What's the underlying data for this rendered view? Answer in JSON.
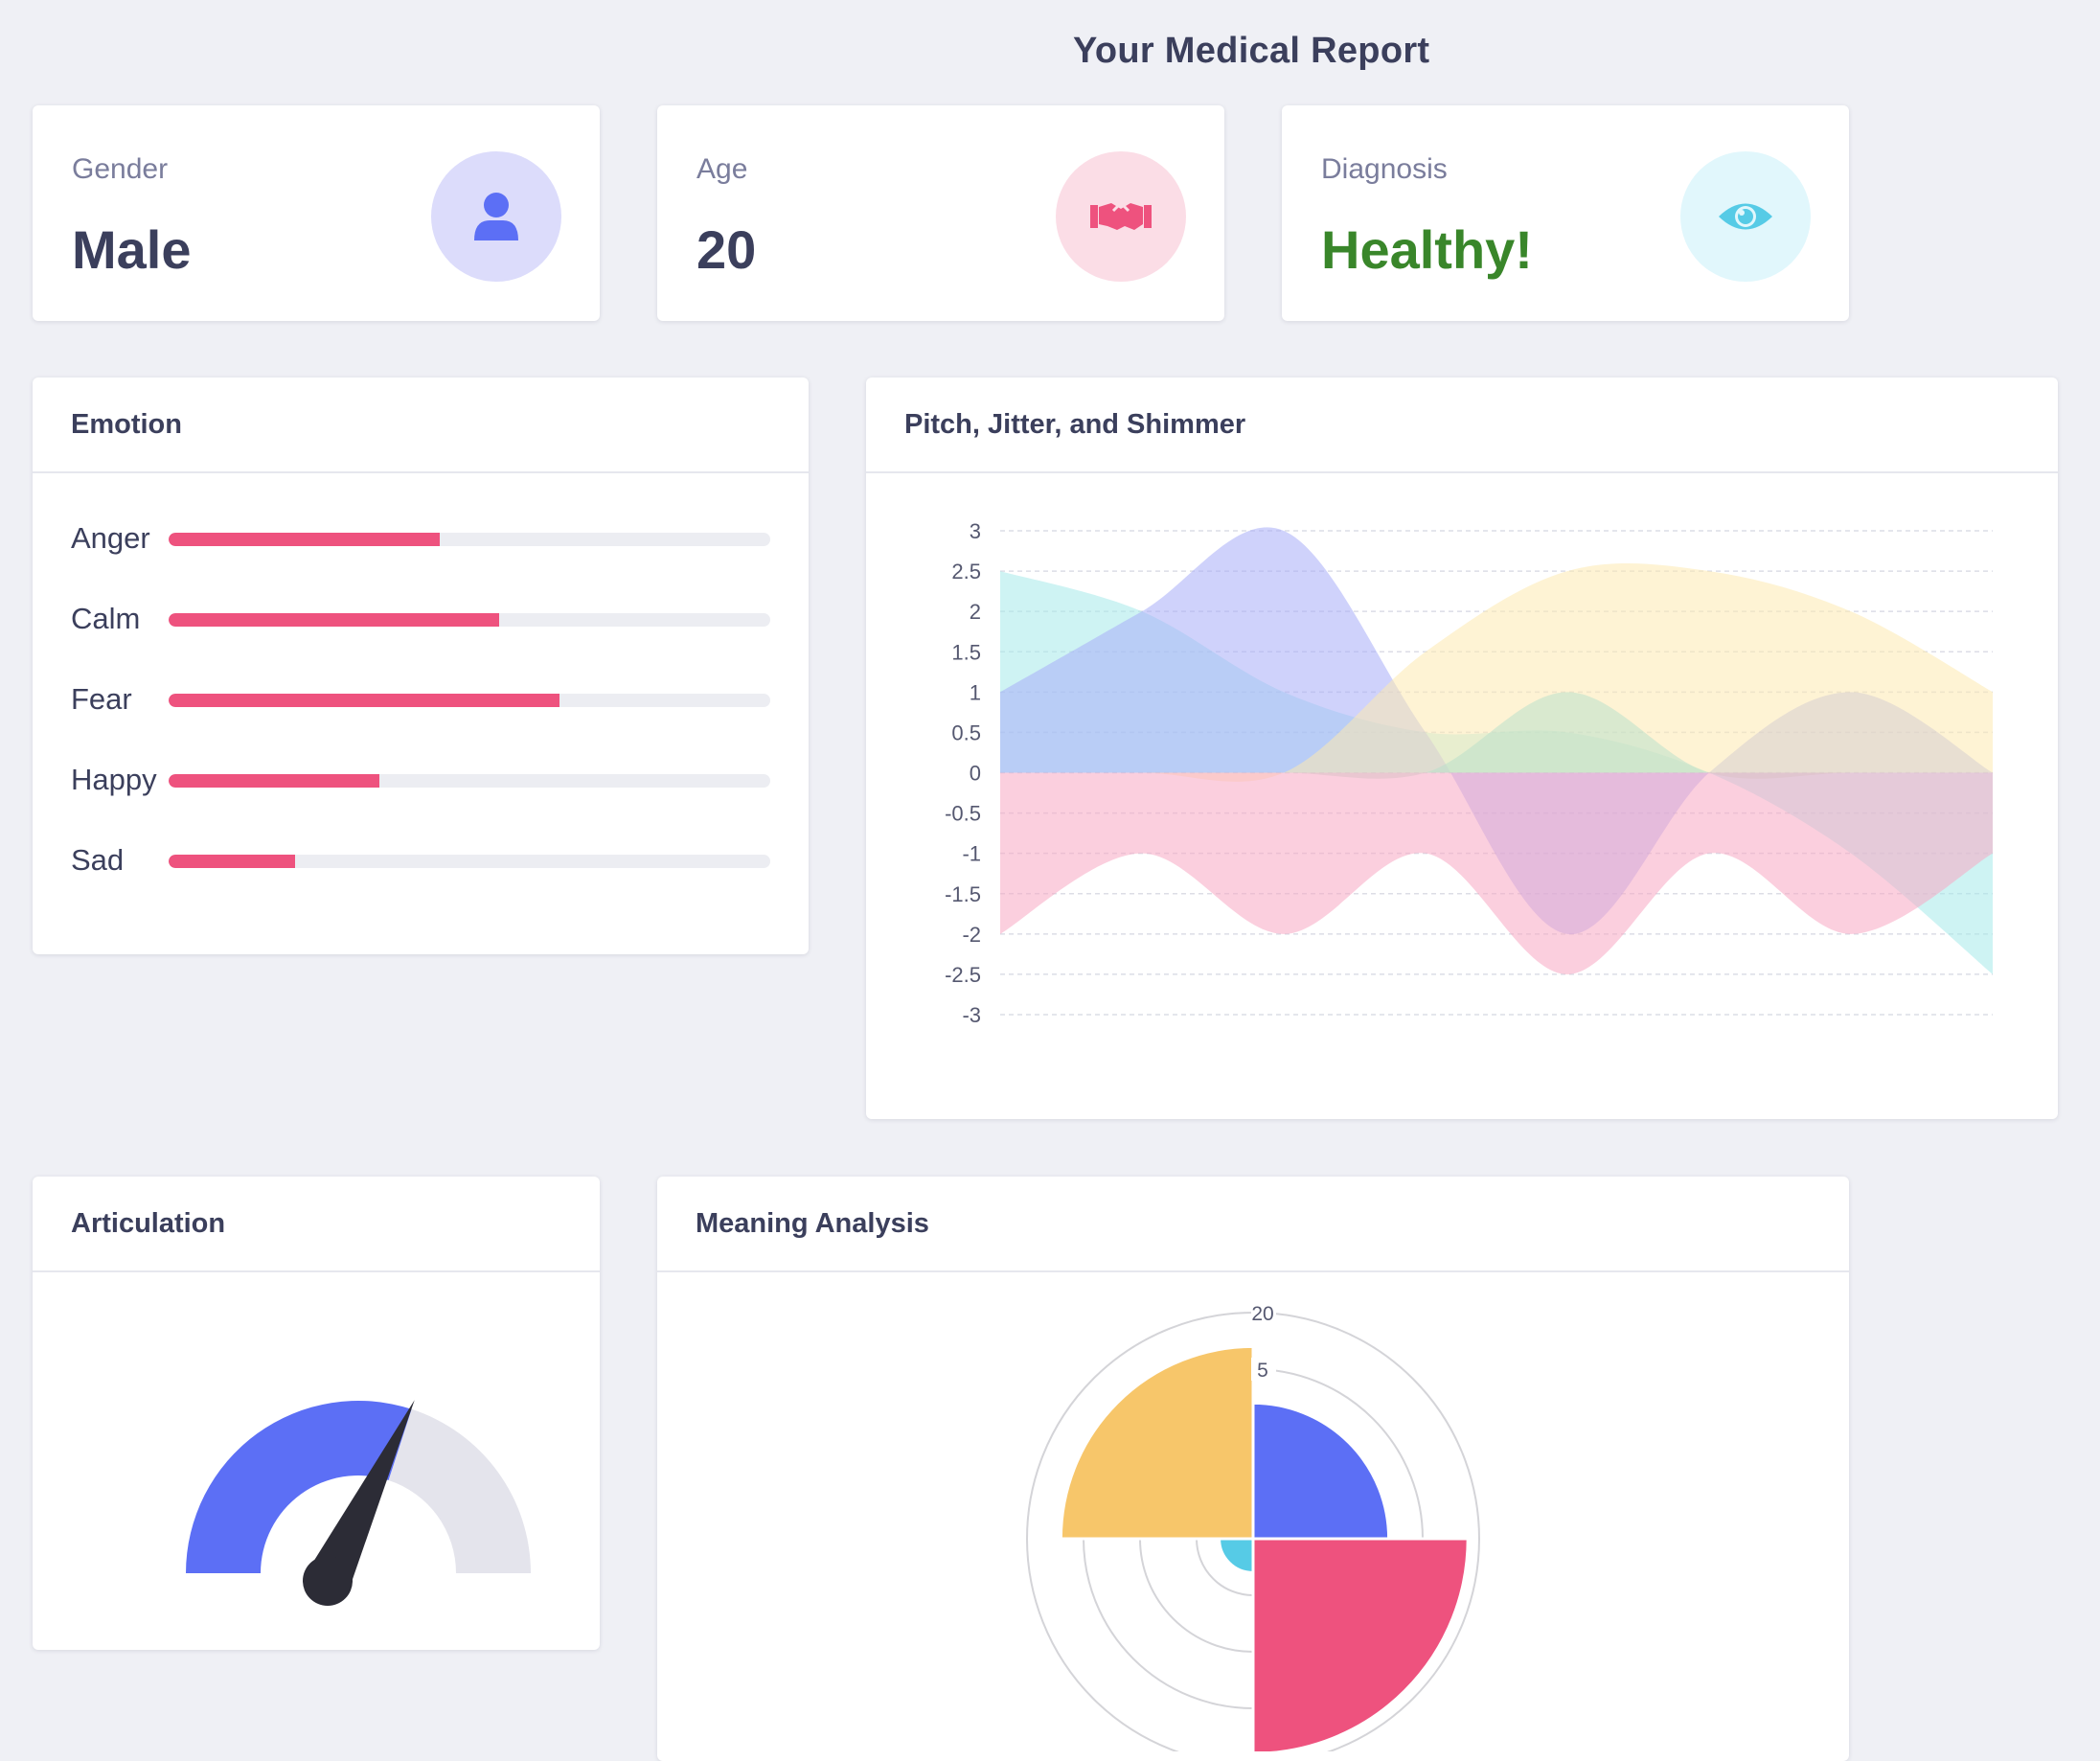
{
  "page": {
    "title": "Your Medical Report"
  },
  "stats": [
    {
      "label": "Gender",
      "value": "Male",
      "icon": "user-icon",
      "circle_color": "#dcdcfb",
      "icon_color": "#5c6ff5"
    },
    {
      "label": "Age",
      "value": "20",
      "icon": "handshake-icon",
      "circle_color": "#fbdde6",
      "icon_color": "#ee527e"
    },
    {
      "label": "Diagnosis",
      "value": "Healthy!",
      "icon": "eye-icon",
      "circle_color": "#e1f7fc",
      "icon_color": "#56cbe6",
      "value_color": "#39862a"
    }
  ],
  "emotion": {
    "title": "Emotion",
    "items": [
      {
        "label": "Anger",
        "value": 45
      },
      {
        "label": "Calm",
        "value": 55
      },
      {
        "label": "Fear",
        "value": 65
      },
      {
        "label": "Happy",
        "value": 35
      },
      {
        "label": "Sad",
        "value": 21
      }
    ]
  },
  "pitch": {
    "title": "Pitch, Jitter, and Shimmer",
    "chart_data": {
      "type": "area",
      "x": [
        0,
        1,
        2,
        3,
        4,
        5,
        6,
        7
      ],
      "ylim": [
        -3,
        3
      ],
      "yticks": [
        "3",
        "2.5",
        "2",
        "1.5",
        "1",
        "0.5",
        "0",
        "-0.5",
        "-1",
        "-1.5",
        "-2",
        "-2.5",
        "-3"
      ],
      "series": [
        {
          "color": "#a6eaea",
          "values": [
            2.5,
            2,
            1,
            0.5,
            0.5,
            0,
            -1,
            -2.5
          ]
        },
        {
          "color": "#a8adf7",
          "values": [
            1,
            2,
            3,
            0.5,
            -2,
            0,
            1,
            0
          ]
        },
        {
          "color": "#fde9b0",
          "values": [
            0,
            0,
            0,
            1.5,
            2.5,
            2.5,
            2,
            1
          ]
        },
        {
          "color": "#b9e0ca",
          "values": [
            0,
            0,
            0,
            0,
            1,
            0,
            0,
            0
          ]
        },
        {
          "color": "#f8a8c2",
          "values": [
            -2,
            -1,
            -2,
            -1,
            -2.5,
            -1,
            -2,
            -1
          ]
        }
      ]
    }
  },
  "articulation": {
    "title": "Articulation",
    "chart_data": {
      "type": "gauge",
      "value": 0.6,
      "min": 0,
      "max": 1,
      "fill_color": "#5c6ff5",
      "track_color": "#e4e4ec"
    }
  },
  "meaning": {
    "title": "Meaning Analysis",
    "chart_data": {
      "type": "polar-area",
      "max": 20,
      "tick_labels": [
        "20",
        "5"
      ],
      "values": [
        12,
        19,
        3,
        17
      ],
      "colors": [
        "#5c6ff5",
        "#ee527e",
        "#56cbe6",
        "#f7c66a"
      ]
    }
  }
}
